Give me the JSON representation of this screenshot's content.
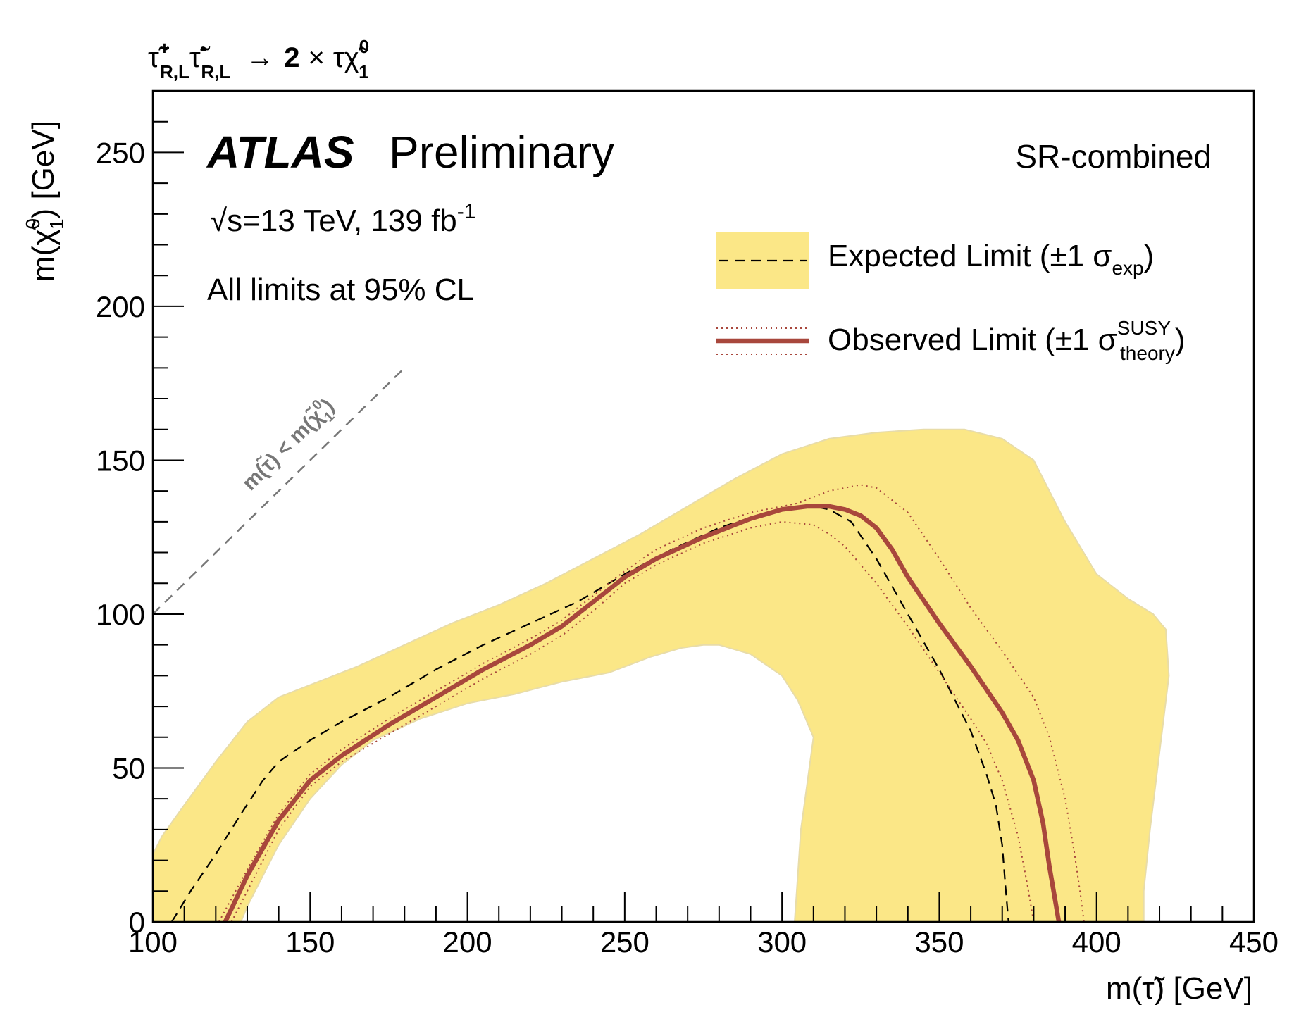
{
  "chart_data": {
    "type": "line",
    "title": {
      "process_main": "τ̃",
      "process_sup1": "+",
      "process_sub1": "R,L",
      "process_sup2": "-",
      "process_sub2": "R,L",
      "process_arrow": "→",
      "process_two": "2",
      "process_times": "×",
      "process_tau": "τχ̃",
      "process_sup3": "0",
      "process_sub3": "1"
    },
    "atlas_label": "ATLAS",
    "preliminary_label": "Preliminary",
    "energy_label": {
      "sqrt": "√s=13 TeV, 139 fb",
      "sup": "-1"
    },
    "cl_label": "All limits at 95% CL",
    "region_label": "SR-combined",
    "diagonal_label": "m(τ̃) < m(χ̃",
    "diagonal_label_sup": "0",
    "diagonal_label_sub": "1",
    "diagonal_label_end": ")",
    "xlabel": "m(τ̃) [GeV]",
    "ylabel_main": "m(χ̃",
    "ylabel_sup": "0",
    "ylabel_sub": "1",
    "ylabel_end": ") [GeV]",
    "xlim": [
      100,
      450
    ],
    "ylim": [
      0,
      270
    ],
    "xticks": [
      100,
      150,
      200,
      250,
      300,
      350,
      400,
      450
    ],
    "yticks": [
      0,
      50,
      100,
      150,
      200,
      250
    ],
    "legend": {
      "placement": "top-right",
      "expected": {
        "text": "Expected Limit (±1 σ",
        "sub": "exp",
        "end": ")"
      },
      "observed": {
        "text": "Observed Limit (±1 σ",
        "sup": "SUSY",
        "sub": "theory",
        "end": ")"
      }
    },
    "colors": {
      "band": "#fbe787",
      "observed": "#a8473c",
      "expected": "#000000",
      "diagonal": "#777777"
    },
    "series": [
      {
        "name": "Expected Limit",
        "style": "dashed",
        "x": [
          106,
          112,
          120,
          128,
          135,
          140,
          150,
          160,
          175,
          190,
          205,
          220,
          235,
          250,
          265,
          280,
          295,
          305,
          310,
          315,
          322,
          330,
          340,
          350,
          360,
          365,
          368,
          370,
          371,
          372
        ],
        "y": [
          0,
          10,
          22,
          35,
          46,
          52,
          59,
          65,
          73,
          82,
          90,
          97,
          104,
          113,
          121,
          128,
          133,
          135,
          135,
          134,
          130,
          118,
          100,
          82,
          62,
          48,
          38,
          25,
          12,
          0
        ]
      },
      {
        "name": "Observed Limit",
        "style": "solid",
        "x": [
          123,
          130,
          140,
          150,
          160,
          175,
          190,
          205,
          220,
          230,
          240,
          250,
          260,
          275,
          290,
          300,
          308,
          315,
          320,
          325,
          330,
          335,
          340,
          350,
          360,
          370,
          375,
          380,
          383,
          385,
          387,
          388
        ],
        "y": [
          0,
          15,
          33,
          46,
          54,
          64,
          73,
          82,
          90,
          96,
          104,
          112,
          118,
          125,
          131,
          134,
          135,
          135,
          134,
          132,
          128,
          121,
          112,
          97,
          83,
          68,
          59,
          46,
          32,
          18,
          6,
          0
        ]
      },
      {
        "name": "Observed +1σ theory",
        "style": "dotted",
        "x": [
          121,
          130,
          140,
          150,
          160,
          175,
          190,
          205,
          220,
          230,
          240,
          250,
          260,
          275,
          290,
          305,
          315,
          325,
          330,
          340,
          350,
          360,
          370,
          380,
          385,
          390,
          393,
          395,
          396
        ],
        "y": [
          0,
          17,
          35,
          48,
          56,
          66,
          75,
          84,
          92,
          98,
          106,
          114,
          121,
          128,
          133,
          136,
          140,
          142,
          141,
          133,
          118,
          102,
          88,
          73,
          60,
          40,
          22,
          8,
          0
        ]
      },
      {
        "name": "Observed -1σ theory",
        "style": "dotted",
        "x": [
          125,
          132,
          140,
          150,
          160,
          175,
          190,
          205,
          220,
          230,
          240,
          250,
          260,
          275,
          290,
          300,
          310,
          315,
          320,
          325,
          330,
          340,
          350,
          360,
          365,
          370,
          375,
          378,
          380
        ],
        "y": [
          0,
          14,
          30,
          44,
          52,
          61,
          70,
          79,
          87,
          93,
          101,
          110,
          116,
          123,
          128,
          130,
          129,
          126,
          122,
          116,
          110,
          96,
          81,
          66,
          58,
          46,
          28,
          12,
          0
        ]
      },
      {
        "name": "Expected band outer",
        "style": "fill",
        "x": [
          100,
          103,
          110,
          120,
          130,
          140,
          150,
          165,
          180,
          195,
          210,
          225,
          240,
          255,
          270,
          285,
          300,
          315,
          330,
          345,
          358,
          370,
          380,
          390,
          400,
          410,
          418,
          422,
          423,
          420,
          417,
          415,
          415
        ],
        "y": [
          22,
          28,
          38,
          52,
          65,
          73,
          77,
          83,
          90,
          97,
          103,
          110,
          118,
          126,
          135,
          144,
          152,
          157,
          159,
          160,
          160,
          157,
          150,
          130,
          113,
          105,
          100,
          95,
          80,
          55,
          30,
          10,
          0
        ]
      },
      {
        "name": "Expected band inner",
        "style": "fill",
        "x": [
          304,
          305,
          306,
          308,
          310,
          305,
          300,
          290,
          280,
          275,
          268,
          258,
          245,
          230,
          215,
          200,
          185,
          170,
          160,
          150,
          140,
          135,
          130,
          128
        ],
        "y": [
          0,
          15,
          30,
          45,
          60,
          72,
          80,
          87,
          90,
          90,
          89,
          86,
          81,
          78,
          74,
          71,
          66,
          59,
          51,
          40,
          25,
          15,
          5,
          0
        ]
      },
      {
        "name": "m(τ̃) < m(χ̃1)",
        "style": "diagonal",
        "x": [
          100,
          180
        ],
        "y": [
          100,
          180
        ]
      }
    ]
  }
}
